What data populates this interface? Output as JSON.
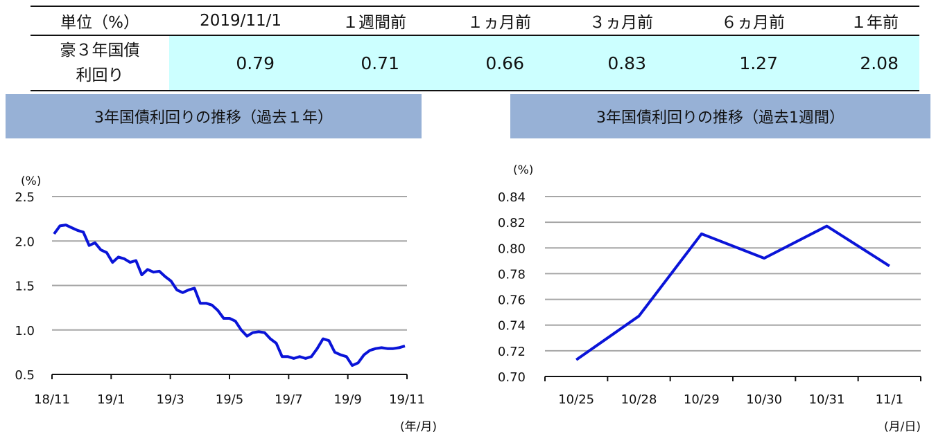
{
  "table": {
    "headers": [
      "単位（%）",
      "2019/11/1",
      "１週間前",
      "１ヵ月前",
      "３ヵ月前",
      "６ヵ月前",
      "１年前"
    ],
    "row_label_lines": [
      "豪３年国債",
      "利回り"
    ],
    "values": [
      "0.79",
      "0.71",
      "0.66",
      "0.83",
      "1.27",
      "2.08"
    ]
  },
  "panels": {
    "left_title": "3年国債利回りの推移（過去１年）",
    "right_title": "3年国債利回りの推移（過去1週間）"
  },
  "chart_data": [
    {
      "type": "line",
      "title": "3年国債利回りの推移（過去１年）",
      "ylabel": "(%)",
      "xlabel": "(年/月)",
      "ylim": [
        0.5,
        2.5
      ],
      "yticks": [
        "2.5",
        "2.0",
        "1.5",
        "1.0",
        "0.5"
      ],
      "xticks": [
        "18/11",
        "19/1",
        "19/3",
        "19/5",
        "19/7",
        "19/9",
        "19/11"
      ],
      "grid": true,
      "color": "#0a14d8",
      "series": [
        {
          "x": [
            0,
            0.2,
            0.4,
            0.6,
            0.8,
            1.0,
            1.2,
            1.4,
            1.6,
            1.8,
            2.0,
            2.2,
            2.4,
            2.6,
            2.8,
            3.0,
            3.2,
            3.4,
            3.6,
            3.8,
            4.0,
            4.2,
            4.4,
            4.6,
            4.8,
            5.0,
            5.2,
            5.4,
            5.6,
            5.8,
            6.0,
            6.2,
            6.4,
            6.6,
            6.8,
            7.0,
            7.2,
            7.4,
            7.6,
            7.8,
            8.0,
            8.2,
            8.4,
            8.6,
            8.8,
            9.0,
            9.2,
            9.4,
            9.6,
            9.8,
            10.0,
            10.2,
            10.4,
            10.6,
            10.8,
            11.0,
            11.2,
            11.4,
            11.6,
            11.8,
            12.0
          ],
          "y": [
            2.08,
            2.17,
            2.18,
            2.15,
            2.12,
            2.1,
            1.95,
            1.98,
            1.9,
            1.87,
            1.76,
            1.82,
            1.8,
            1.76,
            1.78,
            1.62,
            1.68,
            1.65,
            1.66,
            1.6,
            1.55,
            1.45,
            1.42,
            1.45,
            1.47,
            1.3,
            1.3,
            1.28,
            1.22,
            1.13,
            1.13,
            1.1,
            1.0,
            0.93,
            0.97,
            0.98,
            0.97,
            0.9,
            0.85,
            0.7,
            0.7,
            0.68,
            0.7,
            0.68,
            0.7,
            0.79,
            0.9,
            0.88,
            0.75,
            0.72,
            0.7,
            0.6,
            0.63,
            0.72,
            0.77,
            0.79,
            0.8,
            0.79,
            0.79,
            0.8,
            0.82
          ]
        }
      ]
    },
    {
      "type": "line",
      "title": "3年国債利回りの推移（過去1週間）",
      "ylabel": "(%)",
      "xlabel": "(月/日)",
      "ylim": [
        0.7,
        0.84
      ],
      "yticks": [
        "0.84",
        "0.82",
        "0.80",
        "0.78",
        "0.76",
        "0.74",
        "0.72",
        "0.70"
      ],
      "categories": [
        "10/25",
        "10/28",
        "10/29",
        "10/30",
        "10/31",
        "11/1"
      ],
      "grid": true,
      "color": "#0a14d8",
      "series": [
        {
          "values": [
            0.713,
            0.747,
            0.811,
            0.792,
            0.817,
            0.786
          ]
        }
      ]
    }
  ]
}
